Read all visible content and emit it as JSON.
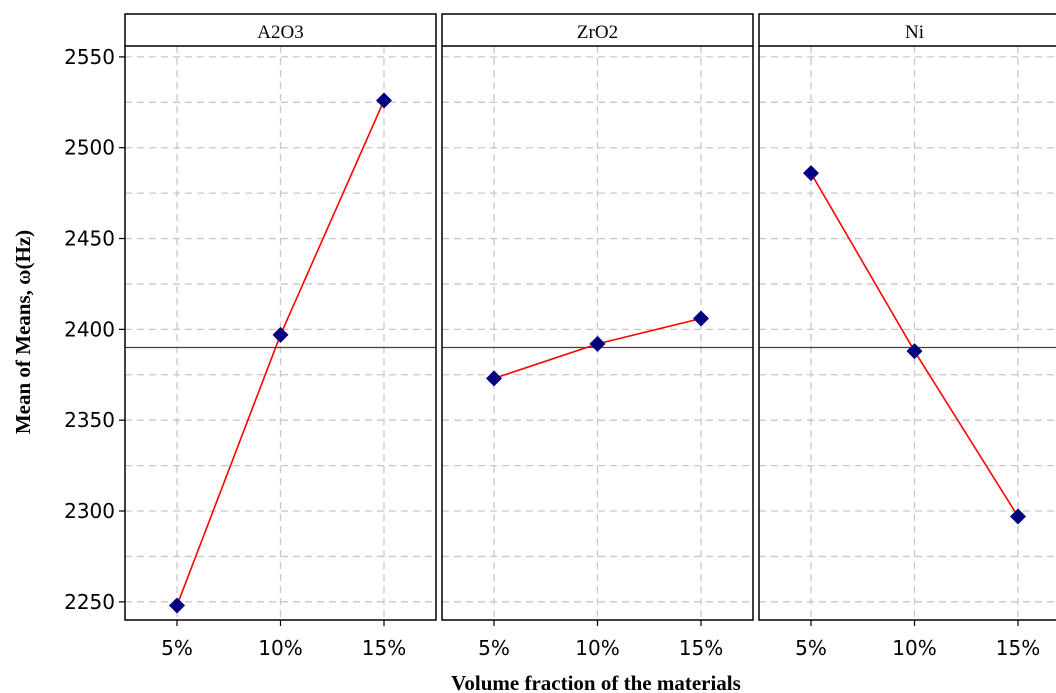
{
  "chart_data": {
    "type": "line",
    "panels": [
      "A2O3",
      "ZrO2",
      "Ni"
    ],
    "categories": [
      "5%",
      "10%",
      "15%"
    ],
    "series": [
      {
        "panel": "A2O3",
        "values": [
          2248,
          2397,
          2526
        ]
      },
      {
        "panel": "ZrO2",
        "values": [
          2373,
          2392,
          2406
        ]
      },
      {
        "panel": "Ni",
        "values": [
          2486,
          2388,
          2297
        ]
      }
    ],
    "reference_line": 2390,
    "xlabel": "Volume fraction of the materials",
    "ylabel": "Mean of Means, ω(Hz)",
    "y_ticks": [
      2250,
      2300,
      2350,
      2400,
      2450,
      2500,
      2550
    ],
    "ylim": [
      2240,
      2556
    ],
    "grid": true,
    "colors": {
      "line": "#ff0000",
      "marker": "#000080",
      "reference": "#404040",
      "grid": "#c8c8c8"
    }
  }
}
